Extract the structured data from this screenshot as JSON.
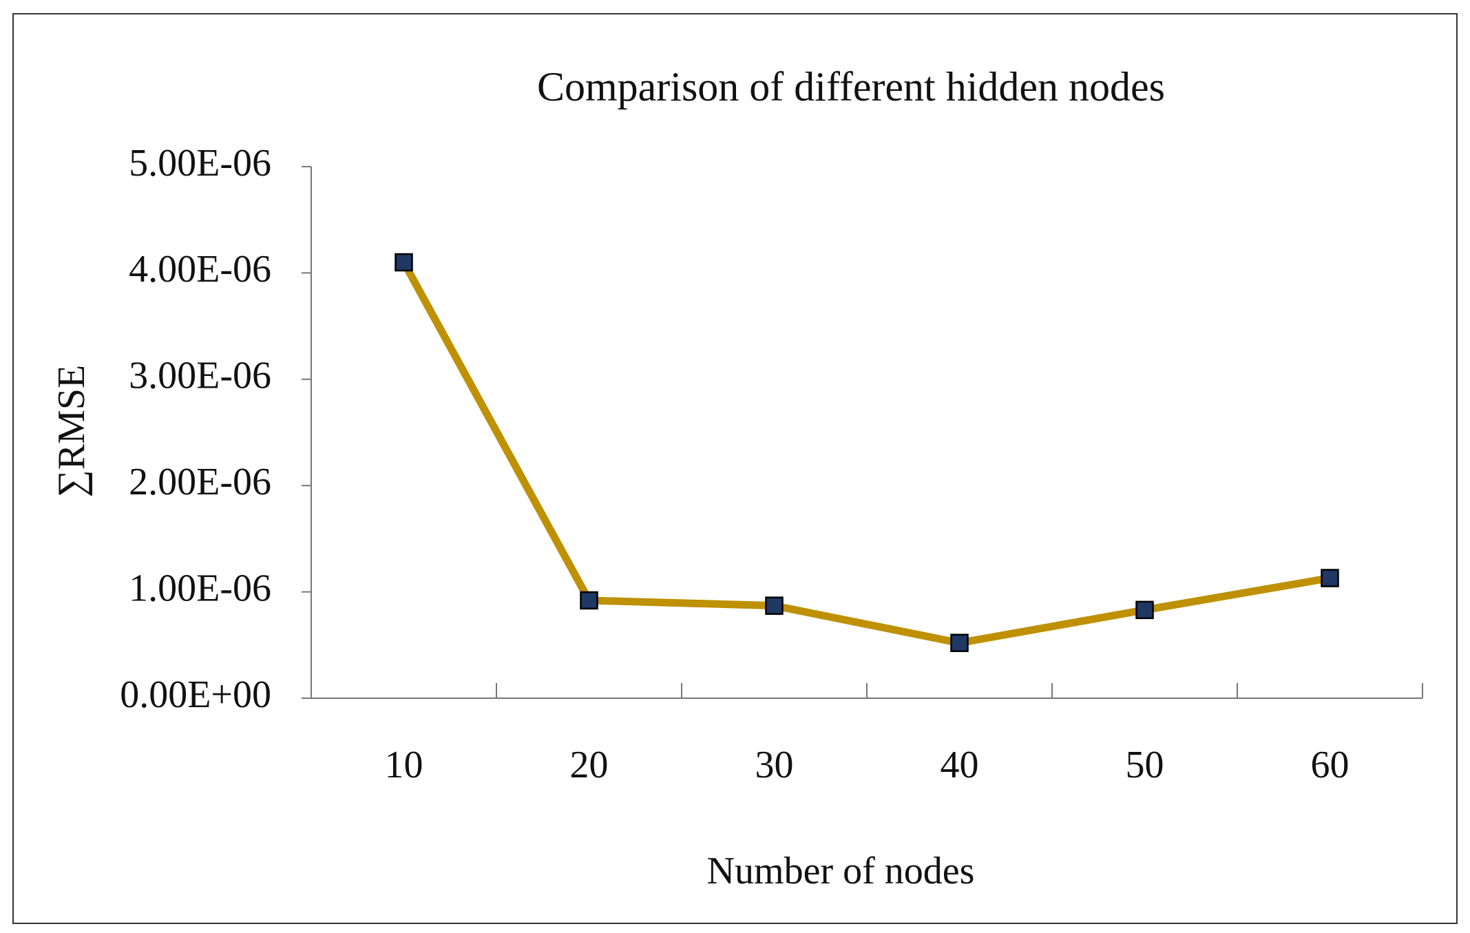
{
  "chart_data": {
    "type": "line",
    "title": "Comparison of different hidden nodes",
    "x_label": "Number of nodes",
    "y_label": "∑RMSE",
    "categories": [
      "10",
      "20",
      "30",
      "40",
      "50",
      "60"
    ],
    "series": [
      {
        "name": "RMSE",
        "color": "#bf9000",
        "marker_color": "#1f3864",
        "values": [
          4.1e-06,
          9.2e-07,
          8.7e-07,
          5.2e-07,
          8.3e-07,
          1.13e-06
        ]
      }
    ],
    "ylim": [
      0,
      5e-06
    ],
    "yticks": [
      {
        "value": 0,
        "label": "0.00E+00"
      },
      {
        "value": 1e-06,
        "label": "1.00E-06"
      },
      {
        "value": 2e-06,
        "label": "2.00E-06"
      },
      {
        "value": 3e-06,
        "label": "3.00E-06"
      },
      {
        "value": 4e-06,
        "label": "4.00E-06"
      },
      {
        "value": 5e-06,
        "label": "5.00E-06"
      }
    ],
    "grid": false,
    "legend": false
  }
}
